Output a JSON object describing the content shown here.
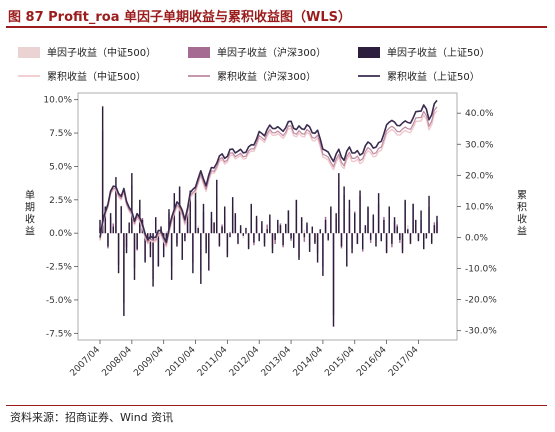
{
  "title": "图 87 Profit_roa 单因子单期收益与累积收益图（WLS）",
  "source": "资料来源：招商证券、Wind 资讯",
  "colors": {
    "bar_zz500": "#ecd3d3",
    "bar_hs300": "#a56b91",
    "bar_sz50": "#2d1e3e",
    "line_zz500": "#f0c8cc",
    "line_hs300": "#bf8aa0",
    "line_sz50": "#3a2b4f",
    "brand": "#9b1c1c"
  },
  "chart_data": {
    "type": "bar+line",
    "ylabel_left": "单期收益",
    "ylabel_right": "累积收益",
    "y_left": {
      "min": -8.0,
      "max": 10.5,
      "ticks": [
        "10.0%",
        "7.5%",
        "5.0%",
        "2.5%",
        "0.0%",
        "-2.5%",
        "-5.0%",
        "-7.5%"
      ],
      "tick_values": [
        10,
        7.5,
        5,
        2.5,
        0,
        -2.5,
        -5,
        -7.5
      ]
    },
    "y_right": {
      "min": -33.0,
      "max": 46.5,
      "ticks": [
        "40.0%",
        "30.0%",
        "20.0%",
        "10.0%",
        "0.0%",
        "-10.0%",
        "-20.0%",
        "-30.0%"
      ],
      "tick_values": [
        40,
        30,
        20,
        10,
        0,
        -10,
        -20,
        -30
      ]
    },
    "x_ticks": [
      "2007/04",
      "2008/04",
      "2009/04",
      "2010/04",
      "2011/04",
      "2012/04",
      "2013/04",
      "2014/04",
      "2015/04",
      "2016/04",
      "2017/04"
    ],
    "months_start": "2007/04",
    "n_periods": 128,
    "legend": [
      {
        "label": "单因子收益（中证500）",
        "kind": "bar",
        "color_key": "bar_zz500"
      },
      {
        "label": "单因子收益（沪深300）",
        "kind": "bar",
        "color_key": "bar_hs300"
      },
      {
        "label": "单因子收益（上证50）",
        "kind": "bar",
        "color_key": "bar_sz50"
      },
      {
        "label": "累积收益（中证500）",
        "kind": "line",
        "color_key": "line_zz500"
      },
      {
        "label": "累积收益（沪深300）",
        "kind": "line",
        "color_key": "line_hs300"
      },
      {
        "label": "累积收益（上证50）",
        "kind": "line",
        "color_key": "line_sz50"
      }
    ],
    "cumulative_sz50_anchors": [
      [
        0,
        0
      ],
      [
        2,
        8
      ],
      [
        4,
        14
      ],
      [
        6,
        17
      ],
      [
        8,
        13
      ],
      [
        9,
        16
      ],
      [
        11,
        10
      ],
      [
        13,
        5
      ],
      [
        14,
        8
      ],
      [
        16,
        3
      ],
      [
        18,
        0
      ],
      [
        20,
        0
      ],
      [
        22,
        3
      ],
      [
        24,
        0
      ],
      [
        25,
        -1
      ],
      [
        27,
        5
      ],
      [
        28,
        9
      ],
      [
        29,
        12
      ],
      [
        30,
        10
      ],
      [
        32,
        7
      ],
      [
        34,
        14
      ],
      [
        36,
        17
      ],
      [
        38,
        20
      ],
      [
        40,
        17
      ],
      [
        42,
        22
      ],
      [
        44,
        25
      ],
      [
        46,
        27
      ],
      [
        48,
        26
      ],
      [
        50,
        28
      ],
      [
        52,
        27
      ],
      [
        54,
        28
      ],
      [
        56,
        29
      ],
      [
        58,
        31
      ],
      [
        60,
        33
      ],
      [
        62,
        33
      ],
      [
        64,
        35
      ],
      [
        66,
        36
      ],
      [
        68,
        35
      ],
      [
        70,
        36
      ],
      [
        72,
        37
      ],
      [
        74,
        34
      ],
      [
        76,
        35
      ],
      [
        78,
        36
      ],
      [
        80,
        35
      ],
      [
        82,
        34
      ],
      [
        84,
        29
      ],
      [
        86,
        26
      ],
      [
        88,
        25
      ],
      [
        90,
        28
      ],
      [
        92,
        26
      ],
      [
        94,
        29
      ],
      [
        96,
        27
      ],
      [
        98,
        26
      ],
      [
        100,
        29
      ],
      [
        102,
        31
      ],
      [
        104,
        29
      ],
      [
        106,
        32
      ],
      [
        108,
        35
      ],
      [
        110,
        38
      ],
      [
        112,
        35
      ],
      [
        114,
        38
      ],
      [
        116,
        37
      ],
      [
        118,
        39
      ],
      [
        120,
        40
      ],
      [
        122,
        42
      ],
      [
        124,
        38
      ],
      [
        126,
        43
      ],
      [
        127,
        44
      ]
    ],
    "bar_values_sz50_pct": [
      1.0,
      9.5,
      2.0,
      -1.0,
      1.5,
      0.5,
      4.2,
      -3.0,
      2.0,
      -6.2,
      -1.5,
      0.8,
      4.5,
      -3.5,
      -1.2,
      2.5,
      1.0,
      -2.2,
      -0.8,
      -1.8,
      -4.0,
      1.2,
      -2.5,
      0.5,
      -1.8,
      -0.5,
      1.8,
      -3.5,
      3.0,
      -1.0,
      3.5,
      -2.0,
      -0.6,
      1.5,
      3.2,
      -3.0,
      3.4,
      0.4,
      -3.8,
      2.2,
      -1.5,
      -2.8,
      1.6,
      0.8,
      4.0,
      -1.0,
      0.5,
      2.0,
      -1.8,
      -0.3,
      2.7,
      1.5,
      -0.8,
      0.6,
      -0.2,
      0.4,
      -1.2,
      2.2,
      -0.7,
      1.3,
      -0.6,
      0.9,
      -1.0,
      0.3,
      1.4,
      -1.5,
      -0.5,
      1.0,
      0.6,
      -0.9,
      0.7,
      1.7,
      -0.4,
      -1.1,
      2.5,
      -2.0,
      1.2,
      -0.3,
      0.8,
      -1.4,
      0.5,
      -0.8,
      -2.2,
      0.3,
      -3.2,
      1.0,
      -0.5,
      2.0,
      -7.0,
      1.5,
      4.5,
      -1.0,
      3.5,
      -2.5,
      2.5,
      -1.5,
      1.5,
      -0.8,
      3.2,
      -1.2,
      0.6,
      2.0,
      -0.5,
      1.4,
      -1.0,
      3.0,
      -0.6,
      1.0,
      -1.5,
      2.0,
      -0.8,
      1.2,
      0.5,
      -0.5,
      -1.5,
      2.5,
      0.3,
      -0.8,
      2.2,
      1.0,
      -0.6,
      1.7,
      -1.2,
      -0.4,
      2.8,
      -0.8,
      0.6,
      1.3
    ]
  }
}
